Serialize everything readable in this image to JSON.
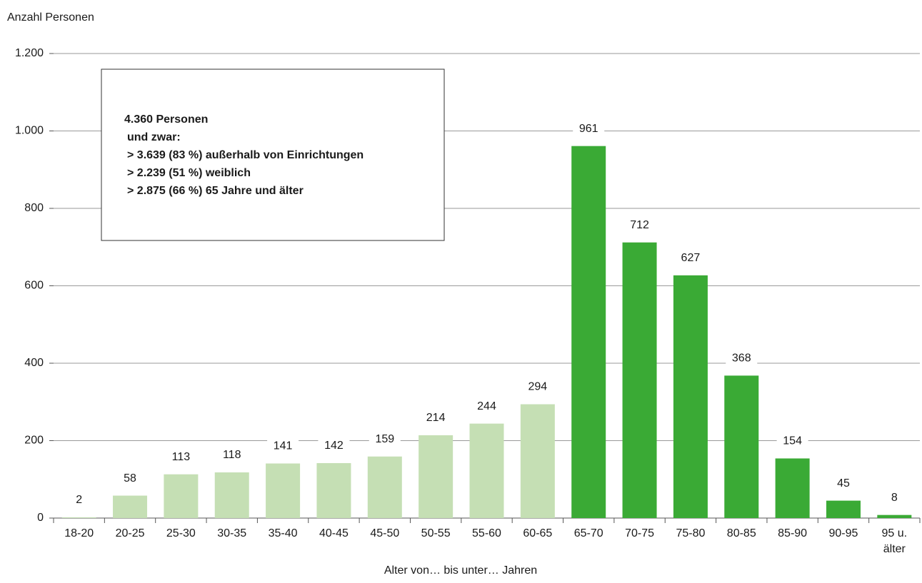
{
  "chart_data": {
    "type": "bar",
    "y_axis_label": "Anzahl Personen",
    "x_axis_label": "Alter von… bis unter… Jahren",
    "categories": [
      "18-20",
      "20-25",
      "25-30",
      "30-35",
      "35-40",
      "40-45",
      "45-50",
      "50-55",
      "55-60",
      "60-65",
      "65-70",
      "70-75",
      "75-80",
      "80-85",
      "85-90",
      "90-95",
      "95 u. älter"
    ],
    "values": [
      2,
      58,
      113,
      118,
      141,
      142,
      159,
      214,
      244,
      294,
      961,
      712,
      627,
      368,
      154,
      45,
      8
    ],
    "colors": [
      "#c5dfb4",
      "#c5dfb4",
      "#c5dfb4",
      "#c5dfb4",
      "#c5dfb4",
      "#c5dfb4",
      "#c5dfb4",
      "#c5dfb4",
      "#c5dfb4",
      "#c5dfb4",
      "#3aaa35",
      "#3aaa35",
      "#3aaa35",
      "#3aaa35",
      "#3aaa35",
      "#3aaa35",
      "#3aaa35"
    ],
    "ylim": [
      0,
      1200
    ],
    "yticks": [
      0,
      200,
      400,
      600,
      800,
      {
        "value": 1000,
        "label": "1.000"
      },
      {
        "value": 1200,
        "label": "1.200"
      }
    ],
    "grid": true,
    "annotation": [
      "4.360 Personen",
      "und zwar:",
      "> 3.639 (83 %) außerhalb von Einrichtungen",
      "> 2.239 (51 %) weiblich",
      "> 2.875 (66 %) 65 Jahre und älter"
    ]
  }
}
